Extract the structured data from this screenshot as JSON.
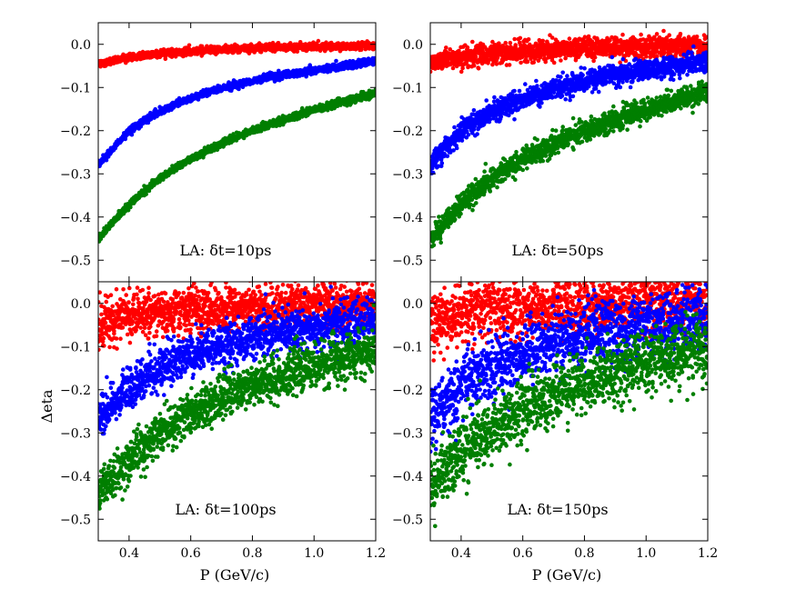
{
  "chart_data": {
    "type": "scatter",
    "ylabel": "Δeta",
    "xlabel": "P (GeV/c)",
    "xlim": [
      0.3,
      1.2
    ],
    "ylim": [
      -0.55,
      0.05
    ],
    "xticks": [
      "0.4",
      "0.6",
      "0.8",
      "1.0",
      "1.2"
    ],
    "yticks": [
      "0.0",
      "−0.1",
      "−0.2",
      "−0.3",
      "−0.4",
      "−0.5"
    ],
    "series_colors": [
      "#ff0000",
      "#0000ff",
      "#007f00"
    ],
    "panels": [
      {
        "label": "LA: δt=10ps",
        "spread": 0.004,
        "series": [
          {
            "color": "#ff0000",
            "x": [
              0.3,
              0.4,
              0.5,
              0.6,
              0.7,
              0.8,
              0.9,
              1.0,
              1.1,
              1.2
            ],
            "y": [
              -0.045,
              -0.03,
              -0.022,
              -0.016,
              -0.012,
              -0.009,
              -0.007,
              -0.006,
              -0.005,
              -0.004
            ]
          },
          {
            "color": "#0000ff",
            "x": [
              0.3,
              0.4,
              0.5,
              0.6,
              0.7,
              0.8,
              0.9,
              1.0,
              1.1,
              1.2
            ],
            "y": [
              -0.28,
              -0.2,
              -0.155,
              -0.125,
              -0.102,
              -0.085,
              -0.071,
              -0.06,
              -0.05,
              -0.04
            ]
          },
          {
            "color": "#007f00",
            "x": [
              0.3,
              0.4,
              0.5,
              0.6,
              0.7,
              0.8,
              0.9,
              1.0,
              1.1,
              1.2
            ],
            "y": [
              -0.45,
              -0.37,
              -0.31,
              -0.265,
              -0.23,
              -0.2,
              -0.175,
              -0.152,
              -0.132,
              -0.113
            ]
          }
        ]
      },
      {
        "label": "LA: δt=50ps",
        "spread": 0.012,
        "series": [
          {
            "color": "#ff0000",
            "x": [
              0.3,
              0.4,
              0.5,
              0.6,
              0.7,
              0.8,
              0.9,
              1.0,
              1.1,
              1.2
            ],
            "y": [
              -0.045,
              -0.03,
              -0.022,
              -0.016,
              -0.012,
              -0.009,
              -0.007,
              -0.006,
              -0.005,
              -0.004
            ]
          },
          {
            "color": "#0000ff",
            "x": [
              0.3,
              0.4,
              0.5,
              0.6,
              0.7,
              0.8,
              0.9,
              1.0,
              1.1,
              1.2
            ],
            "y": [
              -0.28,
              -0.2,
              -0.155,
              -0.125,
              -0.102,
              -0.085,
              -0.071,
              -0.06,
              -0.05,
              -0.04
            ]
          },
          {
            "color": "#007f00",
            "x": [
              0.3,
              0.4,
              0.5,
              0.6,
              0.7,
              0.8,
              0.9,
              1.0,
              1.1,
              1.2
            ],
            "y": [
              -0.45,
              -0.37,
              -0.31,
              -0.265,
              -0.23,
              -0.2,
              -0.175,
              -0.152,
              -0.132,
              -0.113
            ]
          }
        ]
      },
      {
        "label": "LA: δt=100ps",
        "spread": 0.025,
        "series": [
          {
            "color": "#ff0000",
            "x": [
              0.3,
              0.4,
              0.5,
              0.6,
              0.7,
              0.8,
              0.9,
              1.0,
              1.1,
              1.2
            ],
            "y": [
              -0.045,
              -0.03,
              -0.022,
              -0.016,
              -0.012,
              -0.009,
              -0.007,
              -0.006,
              -0.005,
              -0.004
            ]
          },
          {
            "color": "#0000ff",
            "x": [
              0.3,
              0.4,
              0.5,
              0.6,
              0.7,
              0.8,
              0.9,
              1.0,
              1.1,
              1.2
            ],
            "y": [
              -0.27,
              -0.195,
              -0.15,
              -0.12,
              -0.098,
              -0.08,
              -0.067,
              -0.056,
              -0.047,
              -0.038
            ]
          },
          {
            "color": "#007f00",
            "x": [
              0.3,
              0.4,
              0.5,
              0.6,
              0.7,
              0.8,
              0.9,
              1.0,
              1.1,
              1.2
            ],
            "y": [
              -0.44,
              -0.36,
              -0.3,
              -0.255,
              -0.22,
              -0.19,
              -0.165,
              -0.145,
              -0.127,
              -0.11
            ]
          }
        ]
      },
      {
        "label": "LA: δt=150ps",
        "spread": 0.035,
        "series": [
          {
            "color": "#ff0000",
            "x": [
              0.3,
              0.4,
              0.5,
              0.6,
              0.7,
              0.8,
              0.9,
              1.0,
              1.1,
              1.2
            ],
            "y": [
              -0.04,
              -0.025,
              -0.017,
              -0.011,
              -0.007,
              -0.004,
              -0.002,
              -0.001,
              0.0,
              0.0
            ]
          },
          {
            "color": "#0000ff",
            "x": [
              0.3,
              0.4,
              0.5,
              0.6,
              0.7,
              0.8,
              0.9,
              1.0,
              1.1,
              1.2
            ],
            "y": [
              -0.26,
              -0.19,
              -0.145,
              -0.115,
              -0.092,
              -0.075,
              -0.062,
              -0.052,
              -0.043,
              -0.035
            ]
          },
          {
            "color": "#007f00",
            "x": [
              0.3,
              0.4,
              0.5,
              0.6,
              0.7,
              0.8,
              0.9,
              1.0,
              1.1,
              1.2
            ],
            "y": [
              -0.42,
              -0.345,
              -0.29,
              -0.245,
              -0.21,
              -0.183,
              -0.16,
              -0.14,
              -0.123,
              -0.108
            ]
          }
        ]
      }
    ]
  }
}
